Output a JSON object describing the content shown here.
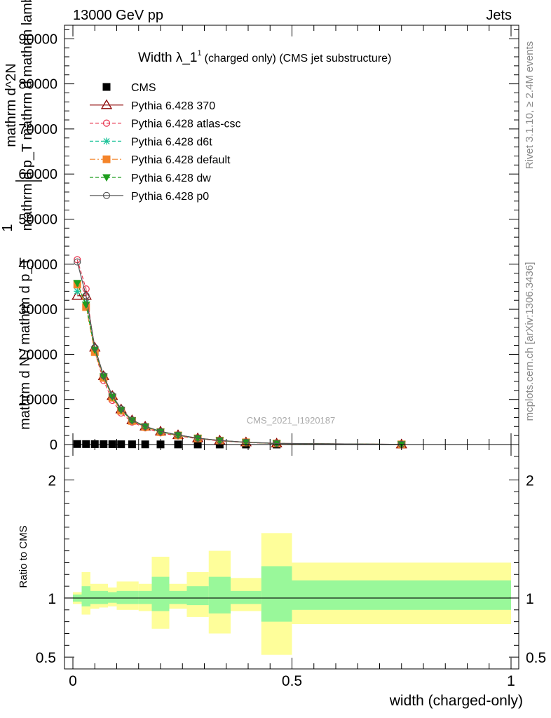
{
  "header": {
    "energy_label": "13000 GeV pp",
    "process_label": "Jets"
  },
  "side_labels": {
    "rivet": "Rivet 3.1.10, ≥ 2.4M events",
    "mcplots": "mcplots.cern.ch [arXiv:1306.3436]"
  },
  "plot_title": {
    "main": "Width λ_1",
    "sup": "1",
    "sub": "(charged only) (CMS jet substructure)"
  },
  "watermark": "CMS_2021_I1920187",
  "chart_data": [
    {
      "type": "line",
      "panel": "main",
      "ylabel": "1/mathrm d N / mathrm d p_T mathrm d^2N / mathrm d p_T mathrm d mathrm lambda",
      "ylim": [
        0,
        93000
      ],
      "xlim": [
        -0.02,
        1.02
      ],
      "yticks": [
        0,
        10000,
        20000,
        30000,
        40000,
        50000,
        60000,
        70000,
        80000,
        90000
      ],
      "ytick_labels": [
        "0",
        "10000",
        "20000",
        "30000",
        "40000",
        "50000",
        "60000",
        "70000",
        "80000",
        "90000"
      ],
      "legend_position": "top-left",
      "x": [
        0.01,
        0.03,
        0.05,
        0.07,
        0.09,
        0.11,
        0.135,
        0.165,
        0.2,
        0.24,
        0.285,
        0.335,
        0.395,
        0.465,
        0.75
      ],
      "series": [
        {
          "name": "CMS",
          "color": "#000000",
          "marker": "square",
          "line": "none",
          "values": [
            110,
            100,
            90,
            80,
            70,
            60,
            50,
            40,
            30,
            25,
            20,
            15,
            10,
            5,
            2
          ]
        },
        {
          "name": "Pythia 6.428 370",
          "color": "#8b0000",
          "marker": "triangle-open",
          "line": "solid",
          "values": [
            33000,
            33000,
            21500,
            15200,
            10800,
            7800,
            5400,
            4000,
            2900,
            2100,
            1400,
            900,
            500,
            250,
            40
          ]
        },
        {
          "name": "Pythia 6.428 atlas-csc",
          "color": "#e8344f",
          "marker": "circle-open",
          "line": "dashed",
          "values": [
            41000,
            34500,
            20500,
            14200,
            9800,
            7000,
            5000,
            3700,
            2600,
            1900,
            1300,
            800,
            450,
            220,
            35
          ]
        },
        {
          "name": "Pythia 6.428 d6t",
          "color": "#1ec39a",
          "marker": "asterisk",
          "line": "dashed",
          "values": [
            34000,
            31500,
            21000,
            15000,
            10500,
            7600,
            5300,
            3950,
            2800,
            2050,
            1380,
            880,
            490,
            240,
            38
          ]
        },
        {
          "name": "Pythia 6.428 default",
          "color": "#f4842a",
          "marker": "square",
          "line": "dashdot",
          "values": [
            35500,
            30500,
            20500,
            14800,
            10400,
            7500,
            5250,
            3900,
            2780,
            2020,
            1360,
            870,
            485,
            238,
            37
          ]
        },
        {
          "name": "Pythia 6.428 dw",
          "color": "#1e9e1e",
          "marker": "triangle-down",
          "line": "dashed",
          "values": [
            35800,
            31000,
            21000,
            15100,
            10600,
            7650,
            5320,
            3960,
            2810,
            2060,
            1390,
            885,
            492,
            242,
            38
          ]
        },
        {
          "name": "Pythia 6.428 p0",
          "color": "#555555",
          "marker": "circle-open",
          "line": "solid",
          "values": [
            40500,
            33000,
            21500,
            15300,
            10900,
            7900,
            5450,
            4050,
            2920,
            2120,
            1420,
            910,
            505,
            252,
            40
          ]
        }
      ]
    },
    {
      "type": "area",
      "panel": "ratio",
      "ylabel": "Ratio to CMS",
      "xlabel": "width (charged-only)",
      "ylim": [
        0.4,
        2.3
      ],
      "yticks": [
        0.5,
        1,
        2
      ],
      "ytick_labels": [
        "0.5",
        "1",
        "2"
      ],
      "xticks": [
        0,
        0.5,
        1
      ],
      "xtick_labels": [
        "0",
        "0.5",
        "1"
      ],
      "reference_line": 1,
      "bins": [
        {
          "lo": 0.0,
          "hi": 0.02,
          "inner": [
            0.97,
            1.03
          ],
          "outer": [
            0.95,
            1.05
          ]
        },
        {
          "lo": 0.02,
          "hi": 0.04,
          "inner": [
            0.93,
            1.1
          ],
          "outer": [
            0.86,
            1.22
          ]
        },
        {
          "lo": 0.04,
          "hi": 0.06,
          "inner": [
            0.95,
            1.06
          ],
          "outer": [
            0.91,
            1.12
          ]
        },
        {
          "lo": 0.06,
          "hi": 0.08,
          "inner": [
            0.95,
            1.06
          ],
          "outer": [
            0.92,
            1.12
          ]
        },
        {
          "lo": 0.08,
          "hi": 0.1,
          "inner": [
            0.96,
            1.05
          ],
          "outer": [
            0.93,
            1.09
          ]
        },
        {
          "lo": 0.1,
          "hi": 0.12,
          "inner": [
            0.95,
            1.06
          ],
          "outer": [
            0.9,
            1.14
          ]
        },
        {
          "lo": 0.12,
          "hi": 0.15,
          "inner": [
            0.95,
            1.06
          ],
          "outer": [
            0.9,
            1.14
          ]
        },
        {
          "lo": 0.15,
          "hi": 0.18,
          "inner": [
            0.95,
            1.06
          ],
          "outer": [
            0.89,
            1.12
          ]
        },
        {
          "lo": 0.18,
          "hi": 0.22,
          "inner": [
            0.89,
            1.18
          ],
          "outer": [
            0.74,
            1.35
          ]
        },
        {
          "lo": 0.22,
          "hi": 0.26,
          "inner": [
            0.95,
            1.06
          ],
          "outer": [
            0.91,
            1.12
          ]
        },
        {
          "lo": 0.26,
          "hi": 0.31,
          "inner": [
            0.94,
            1.1
          ],
          "outer": [
            0.84,
            1.22
          ]
        },
        {
          "lo": 0.31,
          "hi": 0.36,
          "inner": [
            0.87,
            1.18
          ],
          "outer": [
            0.7,
            1.4
          ]
        },
        {
          "lo": 0.36,
          "hi": 0.43,
          "inner": [
            0.95,
            1.06
          ],
          "outer": [
            0.89,
            1.17
          ]
        },
        {
          "lo": 0.43,
          "hi": 0.5,
          "inner": [
            0.8,
            1.27
          ],
          "outer": [
            0.52,
            1.55
          ]
        },
        {
          "lo": 0.5,
          "hi": 1.0,
          "inner": [
            0.9,
            1.15
          ],
          "outer": [
            0.78,
            1.3
          ]
        }
      ],
      "band_colors": {
        "inner": "#99f89a",
        "outer": "#fefe9a"
      }
    }
  ]
}
